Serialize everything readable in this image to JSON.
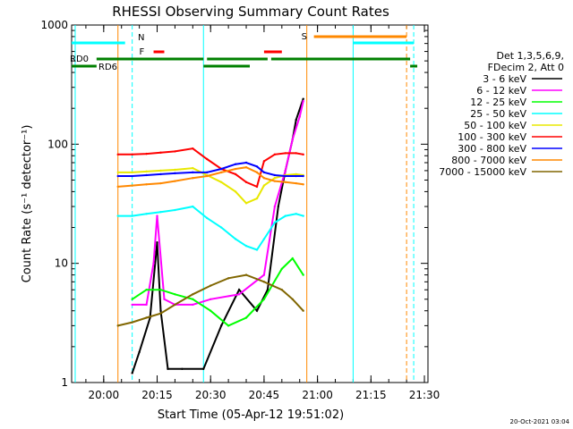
{
  "chart_data": {
    "type": "line",
    "title": "RHESSI Observing Summary Count Rates",
    "xlabel": "Start Time (05-Apr-12 19:51:02)",
    "ylabel": "Count Rate (s⁻¹ detector⁻¹)",
    "yscale": "log",
    "ylim": [
      1,
      1000
    ],
    "xlim": [
      "19:51",
      "21:31"
    ],
    "x_ticks": [
      "20:00",
      "20:15",
      "20:30",
      "20:45",
      "21:00",
      "21:15",
      "21:30"
    ],
    "y_ticks": [
      "1",
      "10",
      "100",
      "1000"
    ],
    "legend_position": "right",
    "legend_header": [
      "Det 1,3,5,6,9,",
      "FDecim 2, Att 0"
    ],
    "series": [
      {
        "name": "3 - 6 keV",
        "color": "#000000",
        "x": [
          "20:08",
          "20:10",
          "20:13",
          "20:15",
          "20:16",
          "20:18",
          "20:22",
          "20:28",
          "20:33",
          "20:38",
          "20:43",
          "20:46",
          "20:49",
          "20:51",
          "20:53",
          "20:54",
          "20:56"
        ],
        "values": [
          1.2,
          1.8,
          3.5,
          15,
          4,
          1.3,
          1.3,
          1.3,
          3,
          6,
          4,
          6,
          30,
          60,
          110,
          160,
          240
        ]
      },
      {
        "name": "6 - 12 keV",
        "color": "#ff00ff",
        "x": [
          "20:08",
          "20:12",
          "20:14",
          "20:15",
          "20:17",
          "20:20",
          "20:25",
          "20:30",
          "20:38",
          "20:45",
          "20:48",
          "20:51",
          "20:53",
          "20:55",
          "20:56"
        ],
        "values": [
          4.5,
          4.5,
          10,
          25,
          5,
          4.5,
          4.5,
          5,
          5.5,
          8,
          30,
          60,
          110,
          170,
          230
        ]
      },
      {
        "name": "12 - 25 keV",
        "color": "#00ff00",
        "x": [
          "20:08",
          "20:12",
          "20:16",
          "20:20",
          "20:25",
          "20:30",
          "20:35",
          "20:40",
          "20:45",
          "20:50",
          "20:53",
          "20:56"
        ],
        "values": [
          5,
          6,
          6,
          5.5,
          5,
          4,
          3,
          3.5,
          5,
          9,
          11,
          8
        ]
      },
      {
        "name": "25 - 50 keV",
        "color": "#00ffff",
        "x": [
          "20:04",
          "20:08",
          "20:12",
          "20:16",
          "20:20",
          "20:25",
          "20:29",
          "20:33",
          "20:37",
          "20:40",
          "20:43",
          "20:45",
          "20:48",
          "20:51",
          "20:54",
          "20:56"
        ],
        "values": [
          25,
          25,
          26,
          27,
          28,
          30,
          24,
          20,
          16,
          14,
          13,
          16,
          22,
          25,
          26,
          25
        ]
      },
      {
        "name": "50 - 100 keV",
        "color": "#e8e800",
        "x": [
          "20:04",
          "20:08",
          "20:12",
          "20:16",
          "20:20",
          "20:25",
          "20:29",
          "20:33",
          "20:37",
          "20:40",
          "20:43",
          "20:45",
          "20:48",
          "20:51",
          "20:54",
          "20:56"
        ],
        "values": [
          58,
          58,
          59,
          60,
          61,
          63,
          55,
          48,
          40,
          32,
          35,
          45,
          52,
          55,
          56,
          55
        ]
      },
      {
        "name": "100 - 300 keV",
        "color": "#ff0000",
        "x": [
          "20:04",
          "20:08",
          "20:12",
          "20:16",
          "20:20",
          "20:25",
          "20:29",
          "20:33",
          "20:37",
          "20:40",
          "20:43",
          "20:45",
          "20:48",
          "20:51",
          "20:54",
          "20:56"
        ],
        "values": [
          82,
          82,
          83,
          85,
          87,
          92,
          75,
          62,
          56,
          48,
          44,
          72,
          82,
          84,
          84,
          82
        ]
      },
      {
        "name": "300 - 800 keV",
        "color": "#0000ff",
        "x": [
          "20:04",
          "20:08",
          "20:12",
          "20:16",
          "20:20",
          "20:25",
          "20:29",
          "20:33",
          "20:37",
          "20:40",
          "20:43",
          "20:45",
          "20:48",
          "20:51",
          "20:54",
          "20:56"
        ],
        "values": [
          54,
          54,
          55,
          56,
          57,
          58,
          58,
          62,
          68,
          70,
          65,
          58,
          55,
          54,
          54,
          54
        ]
      },
      {
        "name": "800 - 7000 keV",
        "color": "#ff8800",
        "x": [
          "20:04",
          "20:08",
          "20:12",
          "20:16",
          "20:20",
          "20:25",
          "20:29",
          "20:33",
          "20:37",
          "20:40",
          "20:43",
          "20:45",
          "20:48",
          "20:51",
          "20:54",
          "20:56"
        ],
        "values": [
          44,
          45,
          46,
          47,
          49,
          52,
          54,
          58,
          62,
          64,
          58,
          52,
          49,
          48,
          47,
          46
        ]
      },
      {
        "name": "7000 - 15000 keV",
        "color": "#806600",
        "x": [
          "20:04",
          "20:08",
          "20:12",
          "20:16",
          "20:20",
          "20:25",
          "20:30",
          "20:35",
          "20:40",
          "20:45",
          "20:50",
          "20:53",
          "20:56"
        ],
        "values": [
          3,
          3.2,
          3.5,
          3.8,
          4.5,
          5.5,
          6.5,
          7.5,
          8,
          7,
          6,
          5,
          4
        ]
      }
    ],
    "status_bars": [
      {
        "label": "N",
        "color": "#00ffff",
        "segments": [
          [
            "19:51",
            "20:06"
          ],
          [
            "21:10",
            "21:27"
          ]
        ]
      },
      {
        "label": "F",
        "color": "#ff0000",
        "segments": [
          [
            "20:14",
            "20:17"
          ],
          [
            "20:45",
            "20:50"
          ]
        ]
      },
      {
        "label": "S",
        "color": "#ff8800",
        "segments": [
          [
            "20:59",
            "21:25"
          ]
        ]
      },
      {
        "label": "RD0",
        "color": "#008000",
        "segments": [
          [
            "19:58",
            "20:28"
          ],
          [
            "20:29",
            "20:46"
          ],
          [
            "20:47",
            "21:26"
          ]
        ]
      },
      {
        "label": "RD6",
        "color": "#008000",
        "segments": [
          [
            "19:51",
            "19:58"
          ],
          [
            "20:28",
            "20:41"
          ],
          [
            "21:26",
            "21:28"
          ]
        ]
      }
    ],
    "vertical_markers": [
      {
        "time": "19:52",
        "color": "#00ffff",
        "style": "solid"
      },
      {
        "time": "20:04",
        "color": "#ff8800",
        "style": "solid"
      },
      {
        "time": "20:08",
        "color": "#00ffff",
        "style": "dashed"
      },
      {
        "time": "20:28",
        "color": "#00ffff",
        "style": "solid"
      },
      {
        "time": "20:57",
        "color": "#ff8800",
        "style": "solid"
      },
      {
        "time": "21:10",
        "color": "#00ffff",
        "style": "solid"
      },
      {
        "time": "21:25",
        "color": "#ff8800",
        "style": "dashed"
      },
      {
        "time": "21:27",
        "color": "#00ffff",
        "style": "dashed"
      }
    ]
  },
  "footer": {
    "timestamp": "20-Oct-2021 03:04"
  }
}
